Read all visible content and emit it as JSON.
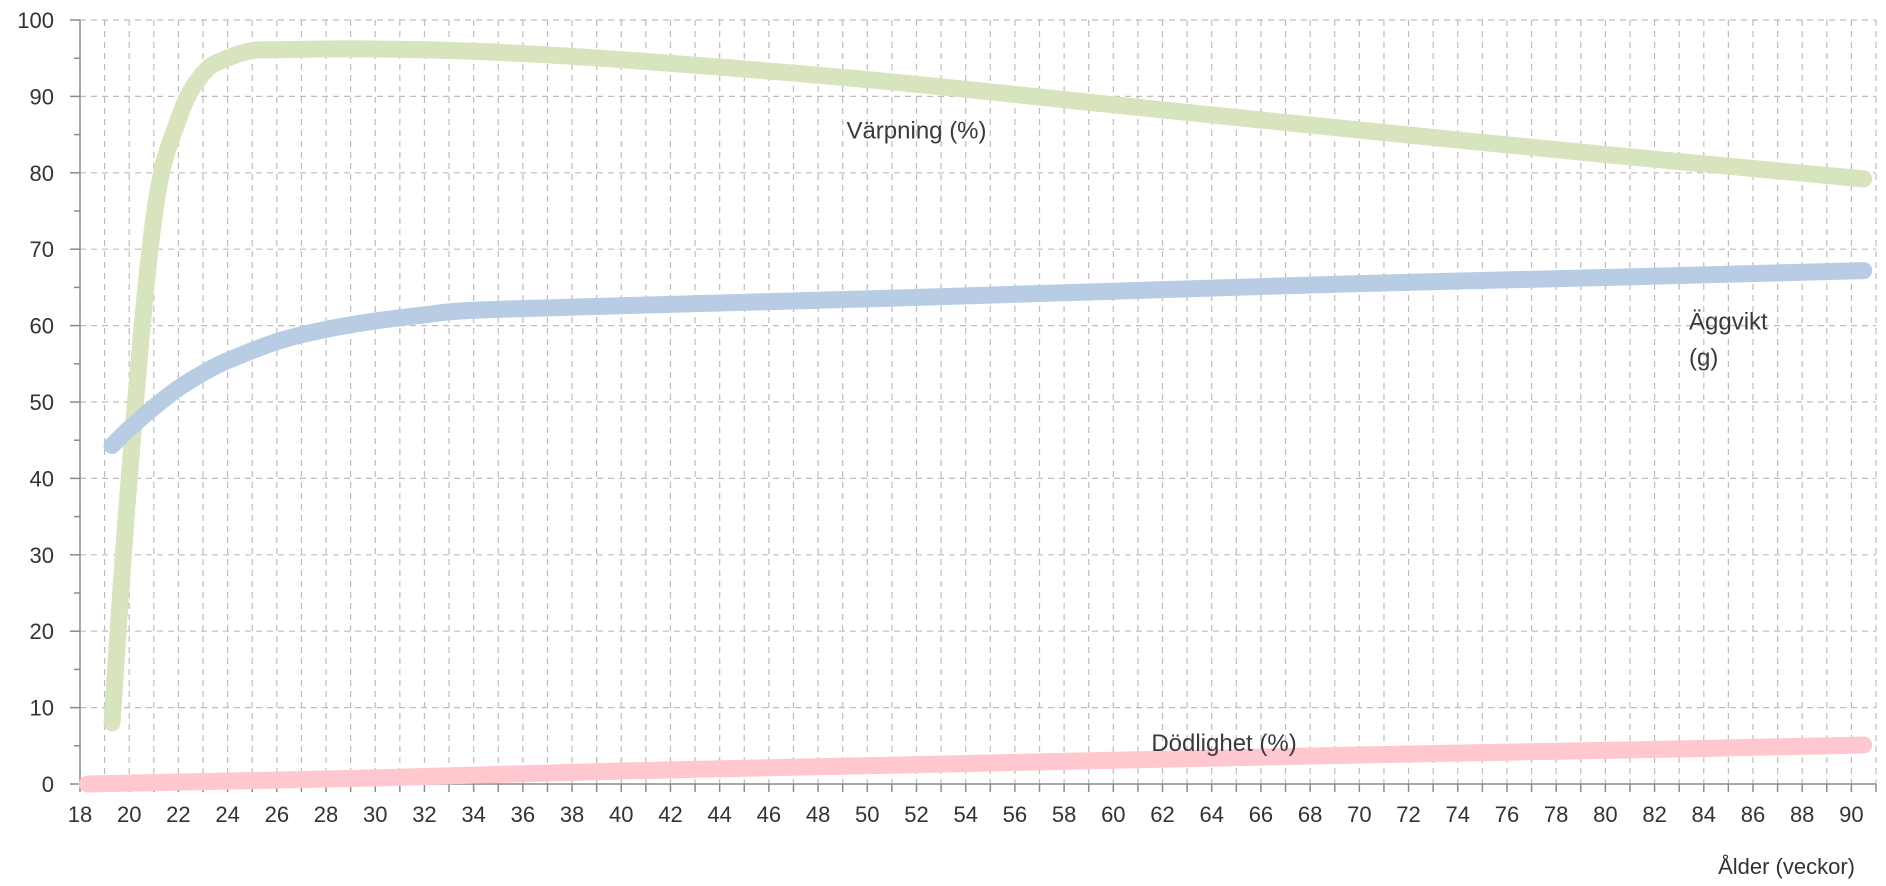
{
  "chart_data": {
    "type": "line",
    "title": "",
    "xlabel": "Ålder (veckor)",
    "ylabel": "",
    "xlim": [
      18,
      91
    ],
    "ylim": [
      0,
      100
    ],
    "grid": true,
    "legend": "none",
    "x_ticks": [
      "18",
      "20",
      "22",
      "24",
      "26",
      "28",
      "30",
      "32",
      "34",
      "36",
      "38",
      "40",
      "42",
      "44",
      "46",
      "48",
      "50",
      "52",
      "54",
      "56",
      "58",
      "60",
      "62",
      "64",
      "66",
      "68",
      "70",
      "72",
      "74",
      "76",
      "78",
      "80",
      "82",
      "84",
      "86",
      "88",
      "90"
    ],
    "y_ticks": [
      "0",
      "10",
      "20",
      "30",
      "40",
      "50",
      "60",
      "70",
      "80",
      "90",
      "100"
    ],
    "series": [
      {
        "name": "Värpning (%)",
        "color": "#d7e4bd",
        "x": [
          19.3,
          20,
          21,
          22,
          23,
          24,
          25,
          26,
          28,
          30,
          34,
          40,
          50,
          60,
          70,
          80,
          90.5
        ],
        "values": [
          8,
          40,
          74,
          87,
          93,
          95,
          96,
          96.1,
          96.2,
          96.2,
          95.9,
          94.8,
          92.2,
          88.9,
          85.6,
          82.4,
          79.2
        ]
      },
      {
        "name": "Äggvikt\n(g)",
        "name_lines": [
          "Äggvikt",
          "(g)"
        ],
        "color": "#b8cce4",
        "x": [
          19.3,
          20,
          21,
          22,
          23,
          24,
          26,
          28,
          30,
          32,
          34,
          40,
          50,
          60,
          70,
          80,
          90.5
        ],
        "values": [
          44.3,
          46.5,
          49.3,
          51.8,
          53.8,
          55.4,
          57.9,
          59.5,
          60.6,
          61.4,
          62,
          62.6,
          63.5,
          64.5,
          65.5,
          66.3,
          67.2
        ]
      },
      {
        "name": "Dödlighet (%)",
        "color": "#ffc7ce",
        "x": [
          18.3,
          30,
          40,
          50,
          60,
          70,
          80,
          90.5
        ],
        "values": [
          0,
          0.8,
          1.7,
          2.4,
          3.1,
          3.8,
          4.4,
          5.1
        ]
      }
    ],
    "annotations": [
      {
        "series": 0,
        "text": "Värpning (%)",
        "x": 52,
        "y": 84.5
      },
      {
        "series": 2,
        "text": "Dödlighet (%)",
        "x": 64.5,
        "y": 4.3
      }
    ],
    "inline_label_positions": {
      "series_1": {
        "x": 83.4,
        "y": 59.5
      }
    }
  }
}
